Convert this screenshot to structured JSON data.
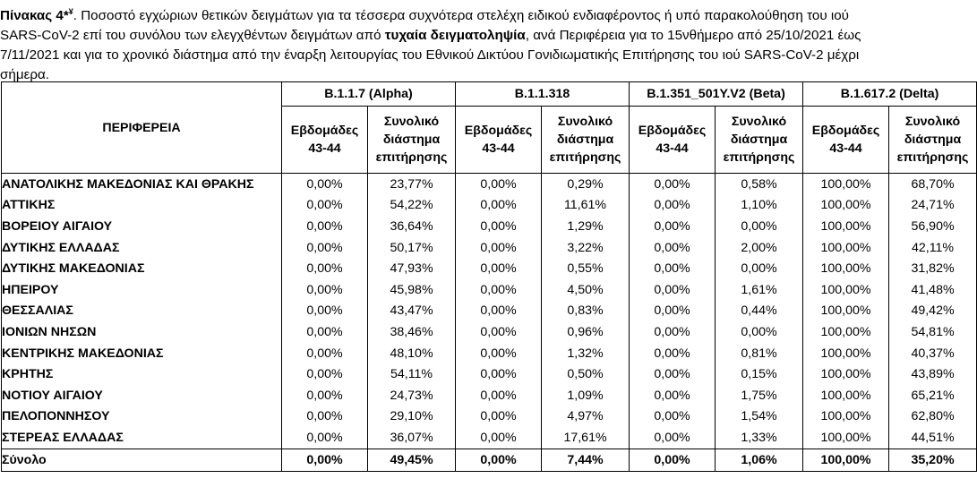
{
  "caption": {
    "label": "Πίνακας 4*",
    "superscript": "¥",
    "line1_rest": ". Ποσοστό εγχώριων θετικών δειγμάτων για τα τέσσερα συχνότερα στελέχη ειδικού ενδιαφέροντος ή υπό παρακολούθηση του ιού",
    "line2_pre": "SARS-CoV-2 επί του συνόλου των ελεγχθέντων δειγμάτων από ",
    "line2_bold": "τυχαία δειγματοληψία",
    "line2_post": ", ανά Περιφέρεια για το 15νθήμερο από 25/10/2021 έως",
    "line3": "7/11/2021 και για το χρονικό διάστημα από την έναρξη λειτουργίας του Εθνικού Δικτύου Γονιδιωματικής Επιτήρησης του ιού SARS-CoV-2 μέχρι",
    "line4": "σήμερα."
  },
  "table": {
    "region_header": "ΠΕΡΙΦΕΡΕΙΑ",
    "variants": [
      "B.1.1.7 (Alpha)",
      "B.1.1.318",
      "B.1.351_501Y.V2 (Beta)",
      "B.1.617.2 (Delta)"
    ],
    "sub_weeks": [
      "Εβδομάδες",
      "43-44"
    ],
    "sub_total": [
      "Συνολικό",
      "διάστημα",
      "επιτήρησης"
    ],
    "rows": [
      {
        "name": "ΑΝΑΤΟΛΙΚΗΣ ΜΑΚΕΔΟΝΙΑΣ ΚΑΙ ΘΡΑΚΗΣ",
        "v": [
          "0,00%",
          "23,77%",
          "0,00%",
          "0,29%",
          "0,00%",
          "0,58%",
          "100,00%",
          "68,70%"
        ]
      },
      {
        "name": "ΑΤΤΙΚΗΣ",
        "v": [
          "0,00%",
          "54,22%",
          "0,00%",
          "11,61%",
          "0,00%",
          "1,10%",
          "100,00%",
          "24,71%"
        ]
      },
      {
        "name": "ΒΟΡΕΙΟΥ ΑΙΓΑΙΟΥ",
        "v": [
          "0,00%",
          "36,64%",
          "0,00%",
          "1,29%",
          "0,00%",
          "0,00%",
          "100,00%",
          "56,90%"
        ]
      },
      {
        "name": "ΔΥΤΙΚΗΣ ΕΛΛΑΔΑΣ",
        "v": [
          "0,00%",
          "50,17%",
          "0,00%",
          "3,22%",
          "0,00%",
          "2,00%",
          "100,00%",
          "42,11%"
        ]
      },
      {
        "name": "ΔΥΤΙΚΗΣ ΜΑΚΕΔΟΝΙΑΣ",
        "v": [
          "0,00%",
          "47,93%",
          "0,00%",
          "0,55%",
          "0,00%",
          "0,00%",
          "100,00%",
          "31,82%"
        ]
      },
      {
        "name": "ΗΠΕΙΡΟΥ",
        "v": [
          "0,00%",
          "45,98%",
          "0,00%",
          "4,50%",
          "0,00%",
          "1,61%",
          "100,00%",
          "41,48%"
        ]
      },
      {
        "name": "ΘΕΣΣΑΛΙΑΣ",
        "v": [
          "0,00%",
          "43,47%",
          "0,00%",
          "0,83%",
          "0,00%",
          "0,44%",
          "100,00%",
          "49,42%"
        ]
      },
      {
        "name": "ΙΟΝΙΩΝ ΝΗΣΩΝ",
        "v": [
          "0,00%",
          "38,46%",
          "0,00%",
          "0,96%",
          "0,00%",
          "0,00%",
          "100,00%",
          "54,81%"
        ]
      },
      {
        "name": "ΚΕΝΤΡΙΚΗΣ ΜΑΚΕΔΟΝΙΑΣ",
        "v": [
          "0,00%",
          "48,10%",
          "0,00%",
          "1,32%",
          "0,00%",
          "0,81%",
          "100,00%",
          "40,37%"
        ]
      },
      {
        "name": "ΚΡΗΤΗΣ",
        "v": [
          "0,00%",
          "54,11%",
          "0,00%",
          "0,50%",
          "0,00%",
          "0,15%",
          "100,00%",
          "43,89%"
        ]
      },
      {
        "name": "ΝΟΤΙΟΥ ΑΙΓΑΙΟΥ",
        "v": [
          "0,00%",
          "24,73%",
          "0,00%",
          "1,09%",
          "0,00%",
          "1,75%",
          "100,00%",
          "65,21%"
        ]
      },
      {
        "name": "ΠΕΛΟΠΟΝΝΗΣΟΥ",
        "v": [
          "0,00%",
          "29,10%",
          "0,00%",
          "4,97%",
          "0,00%",
          "1,54%",
          "100,00%",
          "62,80%"
        ]
      },
      {
        "name": "ΣΤΕΡΕΑΣ ΕΛΛΑΔΑΣ",
        "v": [
          "0,00%",
          "36,07%",
          "0,00%",
          "17,61%",
          "0,00%",
          "1,33%",
          "100,00%",
          "44,51%"
        ]
      }
    ],
    "total": {
      "name": "Σύνολο",
      "v": [
        "0,00%",
        "49,45%",
        "0,00%",
        "7,44%",
        "0,00%",
        "1,06%",
        "100,00%",
        "35,20%"
      ]
    }
  }
}
